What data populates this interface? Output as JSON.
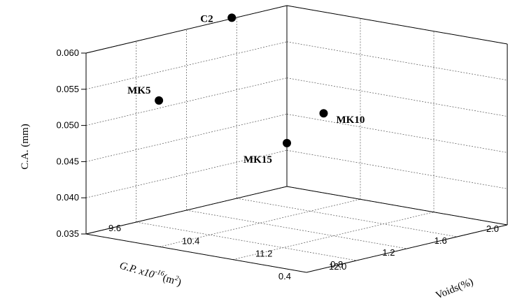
{
  "chart_data": {
    "type": "scatter3d",
    "title": "",
    "xlabel": "G.P. x10",
    "xlabel_exp": "-16",
    "xlabel_unit_open": "(m",
    "xlabel_unit_exp": "2",
    "xlabel_unit_close": ")",
    "ylabel": "Voids(%)",
    "zlabel": "C.A. (mm)",
    "xlim": [
      0.4,
      2.0
    ],
    "ylim": [
      9.6,
      12.0
    ],
    "zlim": [
      0.035,
      0.06
    ],
    "xticks": [
      "0.4",
      "0.8",
      "1.2",
      "1.6",
      "2.0"
    ],
    "yticks": [
      "9.6",
      "10.4",
      "11.2",
      "12.0"
    ],
    "zticks": [
      "0.035",
      "0.040",
      "0.045",
      "0.050",
      "0.055",
      "0.060"
    ],
    "grid": true,
    "points": [
      {
        "label": "C2",
        "x": 2.0,
        "y": 9.0,
        "z": 0.057
      },
      {
        "label": "MK5",
        "x": 1.2,
        "y": 9.3,
        "z": 0.0495
      },
      {
        "label": "MK10",
        "x": 2.0,
        "y": 10.0,
        "z": 0.046
      },
      {
        "label": "MK15",
        "x": 2.0,
        "y": 9.6,
        "z": 0.041
      }
    ]
  }
}
